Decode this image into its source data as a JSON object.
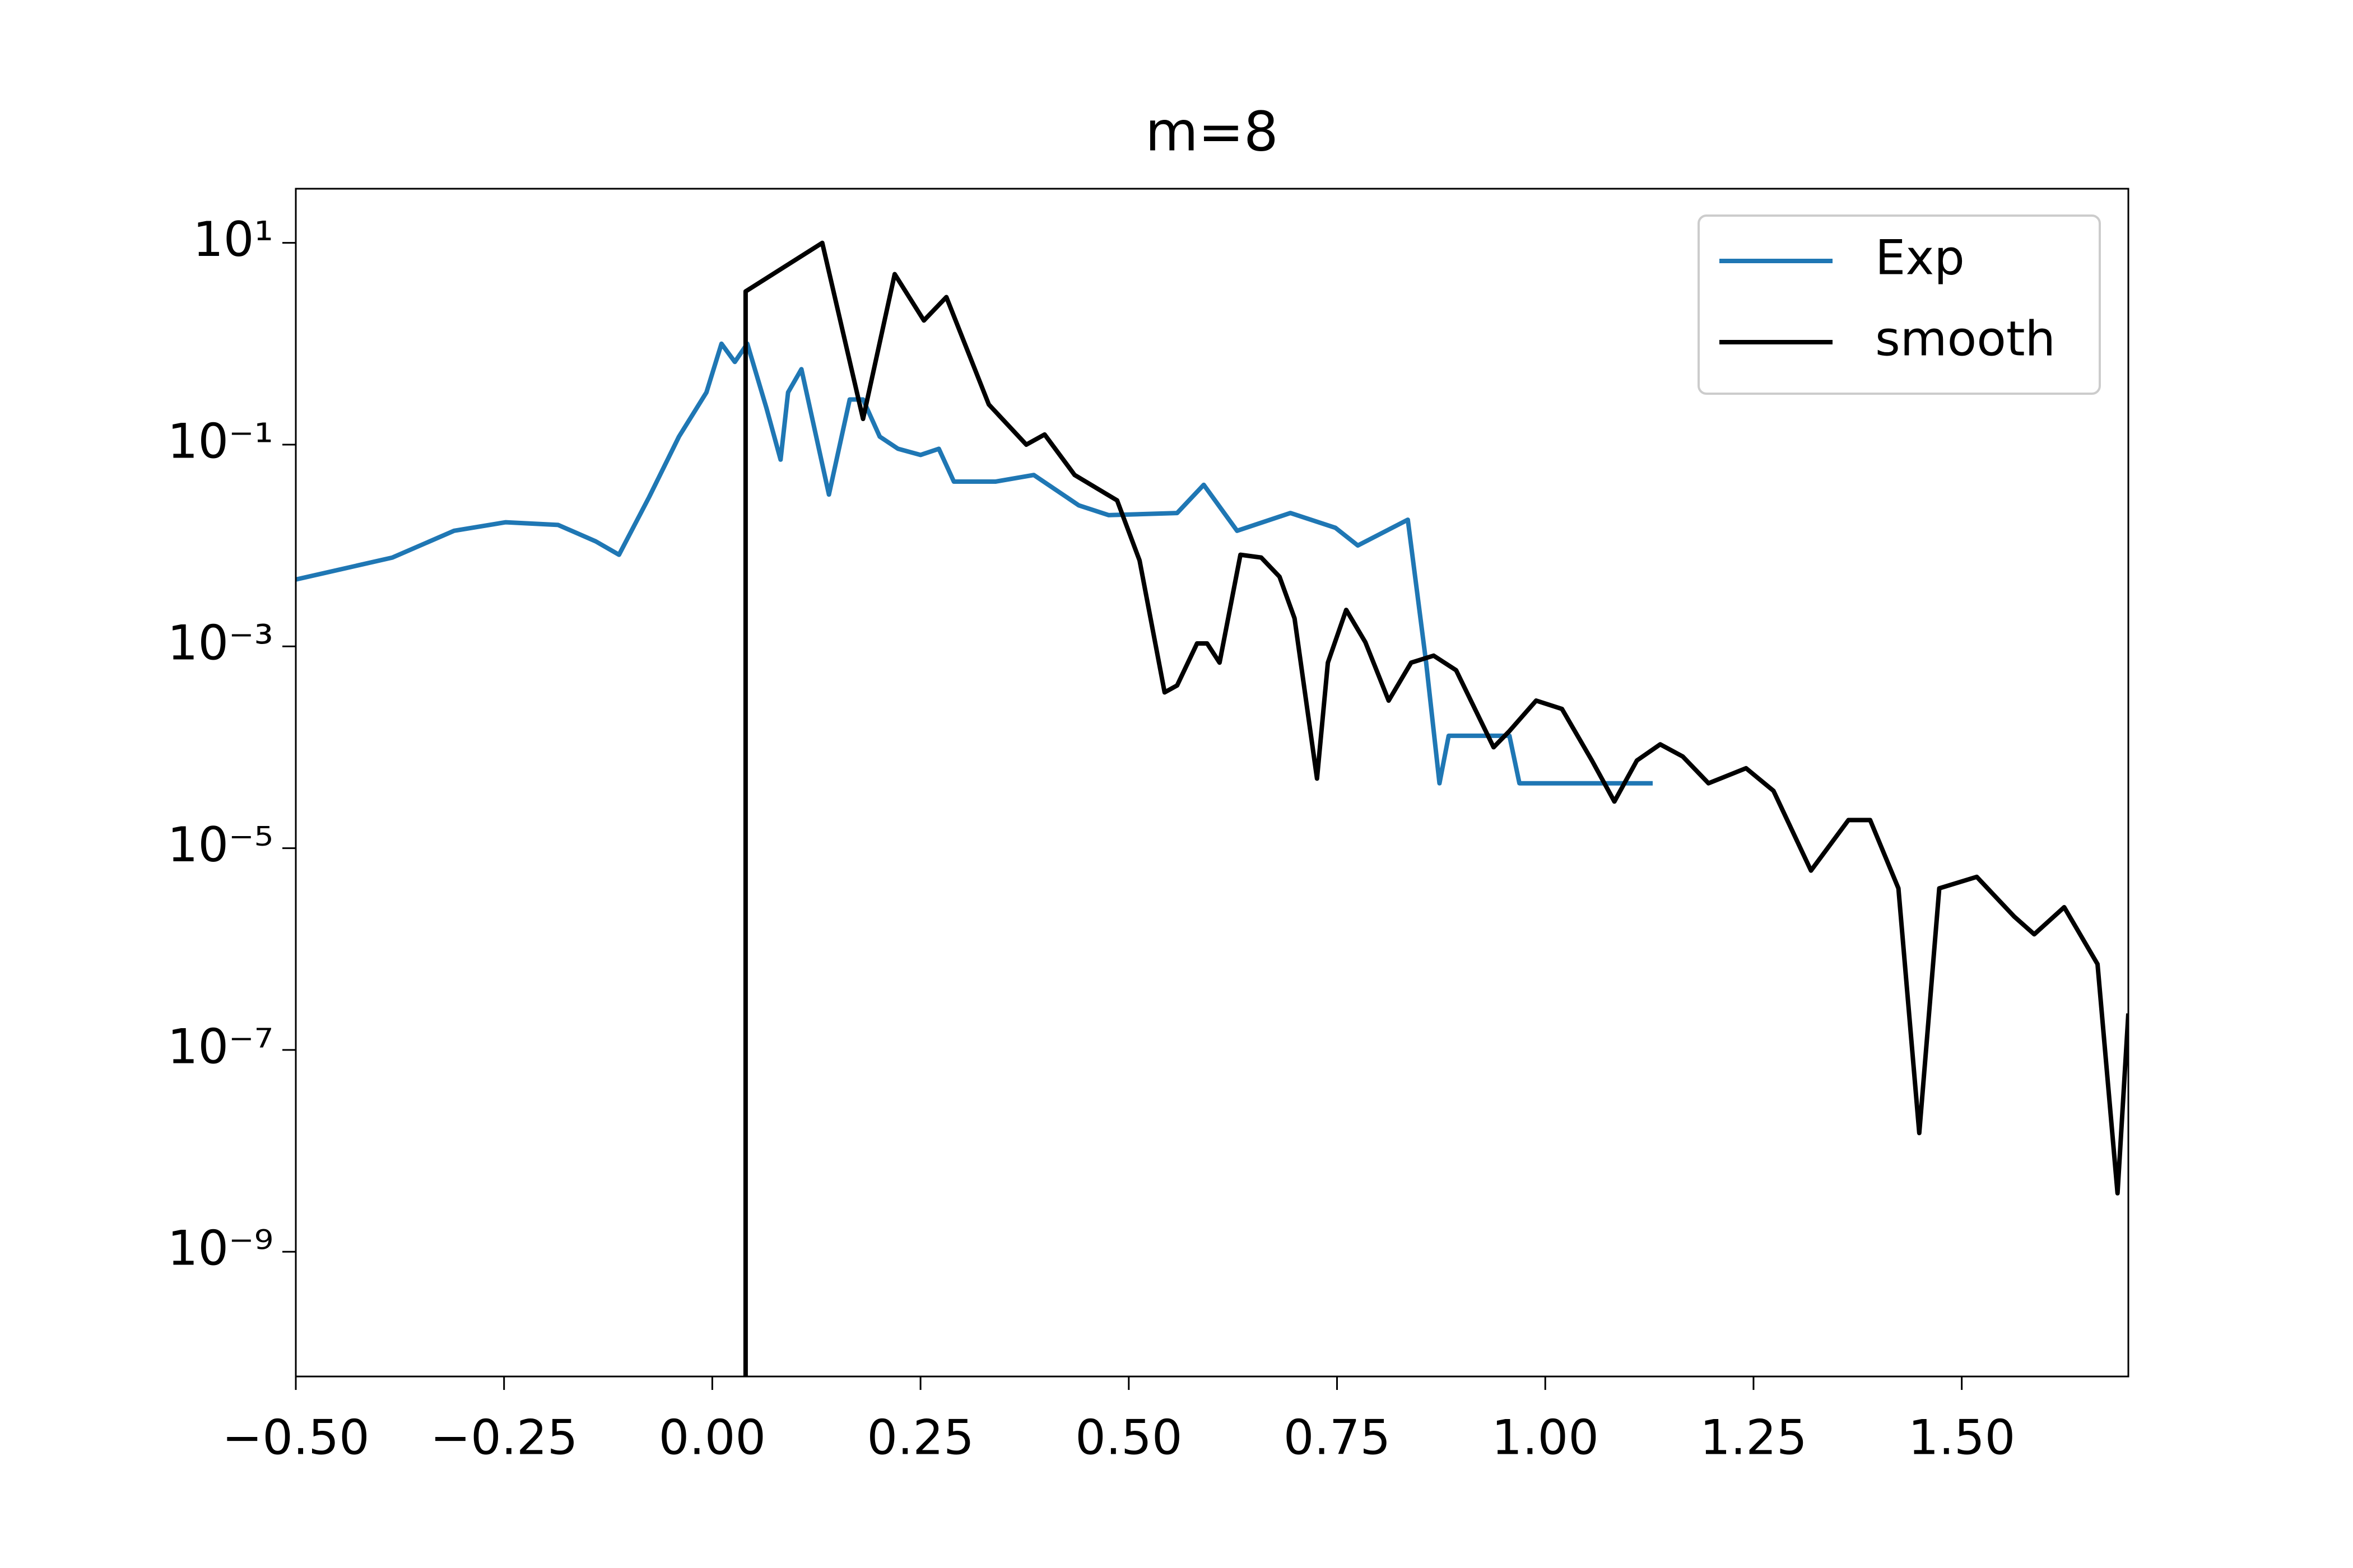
{
  "chart_data": {
    "type": "line",
    "title": "m=8",
    "xlim": [
      -0.5,
      1.7
    ],
    "ylim": [
      5.8e-11,
      34.4
    ],
    "log_y": true,
    "legend": "upper right",
    "xticks": [
      {
        "value": -0.5,
        "label": "−0.50"
      },
      {
        "value": -0.25,
        "label": "−0.25"
      },
      {
        "value": 0,
        "label": "0.00"
      },
      {
        "value": 0.25,
        "label": "0.25"
      },
      {
        "value": 0.5,
        "label": "0.50"
      },
      {
        "value": 0.75,
        "label": "0.75"
      },
      {
        "value": 1,
        "label": "1.00"
      },
      {
        "value": 1.25,
        "label": "1.25"
      },
      {
        "value": 1.5,
        "label": "1.50"
      }
    ],
    "yticks": [
      {
        "value": 10,
        "label": "10¹"
      },
      {
        "value": 0.1,
        "label": "10⁻¹"
      },
      {
        "value": 0.001,
        "label": "10⁻³"
      },
      {
        "value": 1e-05,
        "label": "10⁻⁵"
      },
      {
        "value": 1e-07,
        "label": "10⁻⁷"
      },
      {
        "value": 1e-09,
        "label": "10⁻⁹"
      }
    ],
    "series": [
      {
        "name": "Exp",
        "color": "#1f77b4",
        "x": [
          -0.5,
          -0.384,
          -0.31,
          -0.248,
          -0.185,
          -0.14,
          -0.112,
          -0.076,
          -0.04,
          -0.007,
          0.011,
          0.027,
          0.042,
          0.065,
          0.082,
          0.091,
          0.107,
          0.14,
          0.165,
          0.181,
          0.201,
          0.223,
          0.25,
          0.272,
          0.29,
          0.34,
          0.386,
          0.44,
          0.476,
          0.558,
          0.59,
          0.63,
          0.694,
          0.748,
          0.775,
          0.835,
          0.857,
          0.873,
          0.884,
          0.957,
          0.969,
          1.129
        ],
        "values": [
          0.0046,
          0.0076,
          0.014,
          0.017,
          0.016,
          0.011,
          0.0081,
          0.03,
          0.12,
          0.33,
          1.0,
          0.66,
          1.0,
          0.23,
          0.071,
          0.33,
          0.56,
          0.032,
          0.28,
          0.28,
          0.12,
          0.091,
          0.079,
          0.091,
          0.043,
          0.043,
          0.05,
          0.025,
          0.02,
          0.021,
          0.04,
          0.014,
          0.021,
          0.015,
          0.01,
          0.018,
          0.00069,
          4.4e-05,
          0.00013,
          0.00013,
          4.4e-05,
          4.4e-05
        ]
      },
      {
        "name": "smooth",
        "color": "#000000",
        "x": [
          0.04,
          0.04,
          0.132,
          0.181,
          0.219,
          0.254,
          0.281,
          0.332,
          0.377,
          0.399,
          0.435,
          0.486,
          0.513,
          0.543,
          0.558,
          0.582,
          0.594,
          0.609,
          0.634,
          0.659,
          0.681,
          0.699,
          0.726,
          0.739,
          0.761,
          0.784,
          0.812,
          0.839,
          0.866,
          0.893,
          0.938,
          0.957,
          0.989,
          1.02,
          1.056,
          1.083,
          1.11,
          1.138,
          1.165,
          1.196,
          1.241,
          1.274,
          1.319,
          1.364,
          1.39,
          1.424,
          1.449,
          1.473,
          1.518,
          1.563,
          1.587,
          1.623,
          1.663,
          1.687,
          1.7
        ],
        "values": [
          1e-12,
          3.3,
          10,
          0.18,
          4.9,
          1.7,
          2.9,
          0.25,
          0.1,
          0.126,
          0.05,
          0.028,
          0.0071,
          0.00035,
          0.00041,
          0.00107,
          0.00107,
          0.00069,
          0.0081,
          0.0076,
          0.0049,
          0.0019,
          4.9e-05,
          0.00069,
          0.0023,
          0.0011,
          0.00029,
          0.00069,
          0.00081,
          0.00058,
          0.0001,
          0.000145,
          0.00029,
          0.00024,
          7.4e-05,
          2.9e-05,
          7.4e-05,
          0.000107,
          8.1e-05,
          4.4e-05,
          6.2e-05,
          3.7e-05,
          6e-06,
          1.9e-05,
          1.9e-05,
          4e-06,
          1.5e-08,
          4e-06,
          5.2e-06,
          2.1e-06,
          1.4e-06,
          2.6e-06,
          7.1e-07,
          3.8e-09,
          2.3e-07
        ]
      }
    ]
  }
}
